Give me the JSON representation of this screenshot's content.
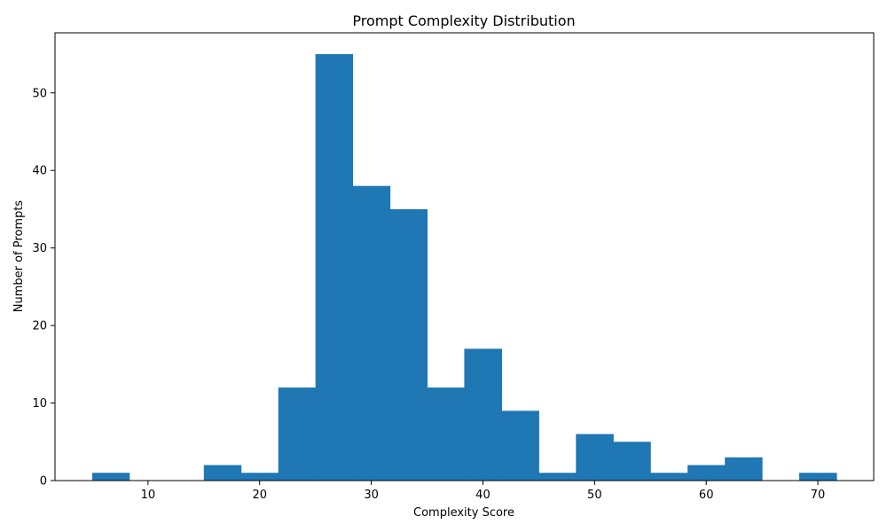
{
  "chart_data": {
    "type": "bar",
    "title": "Prompt Complexity Distribution",
    "xlabel": "Complexity Score",
    "ylabel": "Number of Prompts",
    "bin_edges": [
      5,
      8.33,
      11.67,
      15,
      18.33,
      21.67,
      25,
      28.33,
      31.67,
      35,
      38.33,
      41.67,
      45,
      48.33,
      51.67,
      55,
      58.33,
      61.67,
      65,
      68.33,
      71.67
    ],
    "values": [
      1,
      0,
      0,
      2,
      1,
      12,
      55,
      38,
      35,
      12,
      17,
      9,
      1,
      6,
      5,
      1,
      2,
      3,
      0,
      1
    ],
    "xlim": [
      1.67,
      75
    ],
    "ylim": [
      0,
      57.75
    ],
    "xticks": [
      10,
      20,
      30,
      40,
      50,
      60,
      70
    ],
    "yticks": [
      0,
      10,
      20,
      30,
      40,
      50
    ],
    "bar_color": "#1f77b4",
    "grid": false
  }
}
